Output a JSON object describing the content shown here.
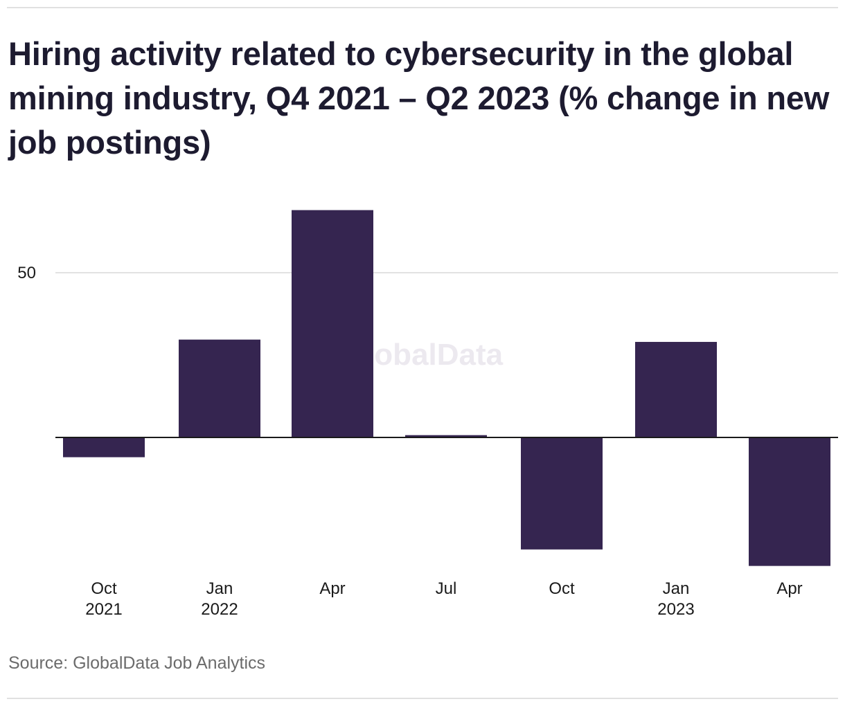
{
  "title": "Hiring activity related to cybersecurity in the global mining industry, Q4 2021 – Q2 2023 (% change in new job postings)",
  "source": "Source: GlobalData Job Analytics",
  "watermark": "GlobalData",
  "colors": {
    "bar": "#352550",
    "gridline": "#d9d9d9",
    "zero_line": "#1a1a1a",
    "title": "#1d1b30",
    "tick_text": "#1a1a1a",
    "source_text": "#6b6b6b",
    "watermark": "#ece9ef"
  },
  "chart_data": {
    "type": "bar",
    "title": "Hiring activity related to cybersecurity in the global mining industry, Q4 2021 – Q2 2023 (% change in new job postings)",
    "xlabel": "",
    "ylabel": "",
    "categories": [
      {
        "month": "Oct",
        "year": "2021"
      },
      {
        "month": "Jan",
        "year": "2022"
      },
      {
        "month": "Apr",
        "year": ""
      },
      {
        "month": "Jul",
        "year": ""
      },
      {
        "month": "Oct",
        "year": ""
      },
      {
        "month": "Jan",
        "year": "2023"
      },
      {
        "month": "Apr",
        "year": ""
      }
    ],
    "values": [
      -6,
      29.7,
      69,
      0.7,
      -34,
      29,
      -39
    ],
    "y_ticks": [
      50
    ],
    "ylim": [
      -40,
      70
    ],
    "grid": true
  }
}
